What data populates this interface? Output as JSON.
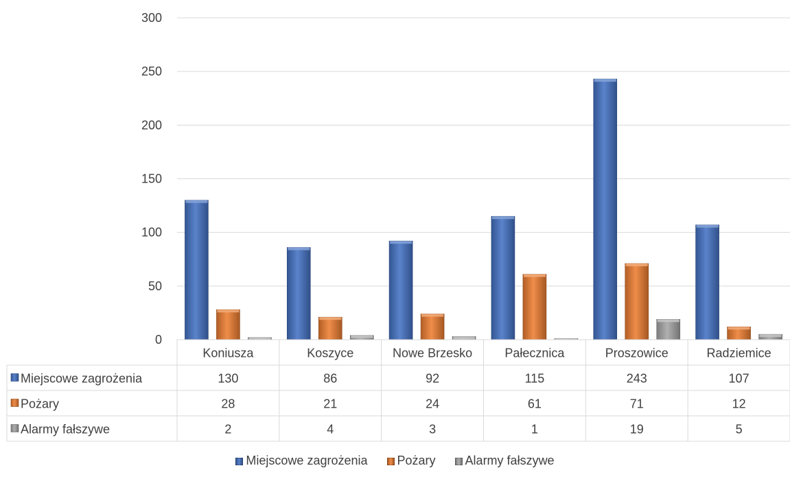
{
  "chart_data": {
    "type": "bar",
    "categories": [
      "Koniusza",
      "Koszyce",
      "Nowe Brzesko",
      "Pałecznica",
      "Proszowice",
      "Radziemice"
    ],
    "series": [
      {
        "name": "Miejscowe zagrożenia",
        "values": [
          130,
          86,
          92,
          115,
          243,
          107
        ],
        "color": "#4472C4"
      },
      {
        "name": "Pożary",
        "values": [
          28,
          21,
          24,
          61,
          71,
          12
        ],
        "color": "#ED7D31"
      },
      {
        "name": "Alarmy fałszywe",
        "values": [
          2,
          4,
          3,
          1,
          19,
          5
        ],
        "color": "#A5A5A5"
      }
    ],
    "ylim": [
      0,
      300
    ],
    "yticks": [
      0,
      50,
      100,
      150,
      200,
      250,
      300
    ],
    "grid": true,
    "data_table": true,
    "legend_position": "bottom"
  }
}
